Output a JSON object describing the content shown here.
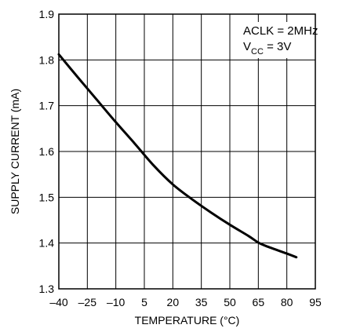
{
  "chart_data": {
    "type": "line",
    "xlabel": "TEMPERATURE (°C)",
    "ylabel": "SUPPLY CURRENT (mA)",
    "xlim": [
      -40,
      95
    ],
    "ylim": [
      1.3,
      1.9
    ],
    "xticks": [
      -40,
      -25,
      -10,
      5,
      20,
      35,
      50,
      65,
      80,
      95
    ],
    "yticks": [
      1.3,
      1.4,
      1.5,
      1.6,
      1.7,
      1.8,
      1.9
    ],
    "x_tick_labels": [
      "–40",
      "–25",
      "–10",
      "5",
      "20",
      "35",
      "50",
      "65",
      "80",
      "95"
    ],
    "y_tick_labels": [
      "1.3",
      "1.4",
      "1.5",
      "1.6",
      "1.7",
      "1.8",
      "1.9"
    ],
    "grid": true,
    "annotations": {
      "line1": "ACLK = 2MHz",
      "line2_main": "V",
      "line2_sub": "CC",
      "line2_rest": " = 3V"
    },
    "series": [
      {
        "x": [
          -40,
          -30,
          -20,
          -10,
          0,
          10,
          20,
          30,
          40,
          50,
          60,
          65,
          70,
          80,
          85
        ],
        "y": [
          1.812,
          1.762,
          1.713,
          1.664,
          1.617,
          1.569,
          1.528,
          1.496,
          1.467,
          1.44,
          1.415,
          1.401,
          1.392,
          1.377,
          1.369
        ]
      }
    ]
  }
}
